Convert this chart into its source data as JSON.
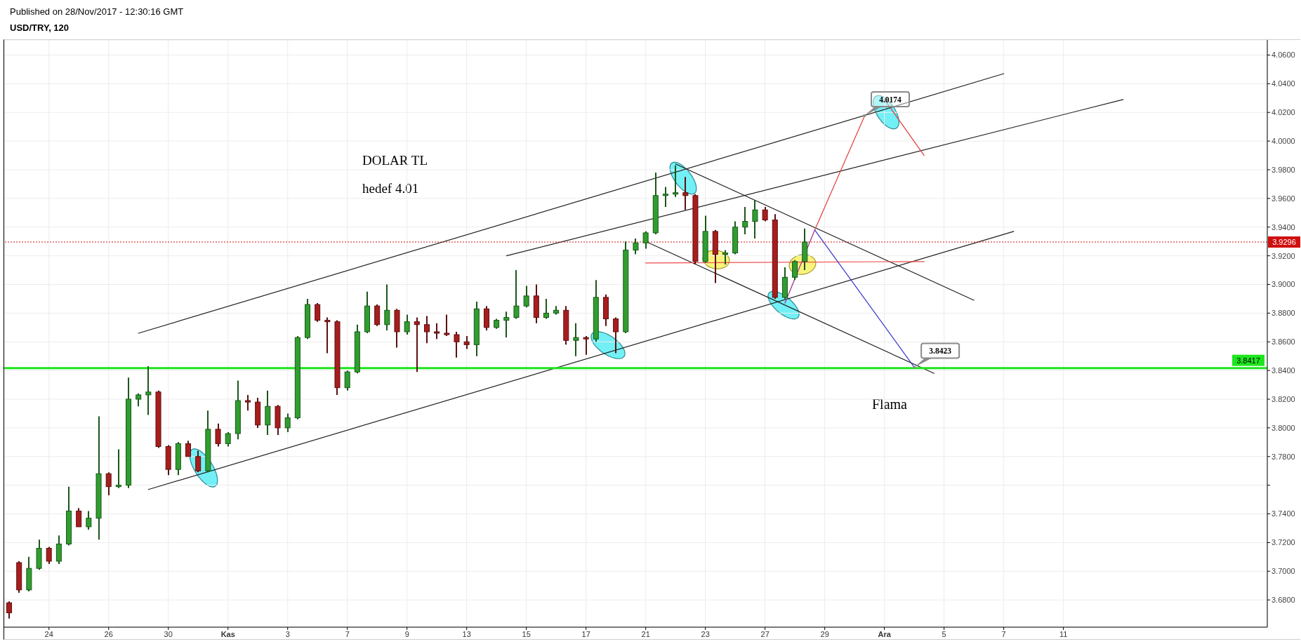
{
  "chart_data": {
    "type": "candlestick",
    "title": "USD/TRY, 120",
    "annotations": [
      "Published on 28/Nov/2017 - 12:30:16 GMT",
      "DOLAR TL",
      "hedef 4.01",
      "Flama",
      "4.0174",
      {
        "text": "3.8423",
        "y": 3.8423
      }
    ],
    "categories": [
      null,
      null,
      null,
      null,
      "24",
      null,
      null,
      null,
      null,
      null,
      "26",
      null,
      null,
      null,
      null,
      null,
      "30",
      null,
      null,
      null,
      null,
      null,
      "Kas",
      null,
      null,
      null,
      null,
      null,
      "3",
      null,
      null,
      null,
      null,
      null,
      "7",
      null,
      null,
      null,
      null,
      null,
      "9",
      null,
      null,
      null,
      null,
      null,
      "13",
      null,
      null,
      null,
      null,
      null,
      "15",
      null,
      null,
      null,
      null,
      null,
      "17",
      null,
      null,
      null,
      null,
      null,
      "21",
      null,
      null,
      null,
      null,
      null,
      "23",
      null,
      null,
      null,
      null,
      null,
      "27",
      null,
      null,
      null,
      null,
      null,
      "29",
      null,
      null,
      null,
      null,
      null,
      "Ara",
      null,
      null,
      null,
      null,
      null,
      "5",
      null,
      null,
      null,
      null,
      null,
      "7",
      null,
      null,
      null,
      null,
      null,
      "11",
      null,
      null,
      null,
      null,
      null,
      null,
      null,
      null,
      null,
      null,
      null,
      null,
      null,
      null,
      null,
      null,
      null,
      null,
      null,
      null
    ],
    "ohlc": [
      [
        3.678,
        3.679,
        3.667,
        3.671
      ],
      [
        3.706,
        3.707,
        3.685,
        3.687
      ],
      [
        3.687,
        3.71,
        3.686,
        3.702
      ],
      [
        3.702,
        3.722,
        3.701,
        3.716
      ],
      [
        3.716,
        3.717,
        3.705,
        3.707
      ],
      [
        3.707,
        3.725,
        3.705,
        3.719
      ],
      [
        3.719,
        3.759,
        3.718,
        3.742
      ],
      [
        3.742,
        3.744,
        3.731,
        3.731
      ],
      [
        3.731,
        3.742,
        3.729,
        3.737
      ],
      [
        3.737,
        3.808,
        3.722,
        3.768
      ],
      [
        3.768,
        3.769,
        3.753,
        3.759
      ],
      [
        3.759,
        3.785,
        3.758,
        3.76
      ],
      [
        3.76,
        3.835,
        3.758,
        3.82
      ],
      [
        3.82,
        3.824,
        3.815,
        3.823
      ],
      [
        3.823,
        3.843,
        3.809,
        3.825
      ],
      [
        3.825,
        3.826,
        3.786,
        3.787
      ],
      [
        3.787,
        3.788,
        3.767,
        3.771
      ],
      [
        3.771,
        3.79,
        3.767,
        3.789
      ],
      [
        3.789,
        3.791,
        3.78,
        3.78
      ],
      [
        3.78,
        3.784,
        3.769,
        3.77
      ],
      [
        3.77,
        3.812,
        3.769,
        3.799
      ],
      [
        3.799,
        3.803,
        3.787,
        3.789
      ],
      [
        3.789,
        3.797,
        3.787,
        3.796
      ],
      [
        3.796,
        3.833,
        3.792,
        3.819
      ],
      [
        3.819,
        3.823,
        3.812,
        3.818
      ],
      [
        3.818,
        3.821,
        3.8,
        3.802
      ],
      [
        3.802,
        3.826,
        3.795,
        3.815
      ],
      [
        3.815,
        3.816,
        3.795,
        3.8
      ],
      [
        3.8,
        3.81,
        3.797,
        3.807
      ],
      [
        3.807,
        3.864,
        3.806,
        3.863
      ],
      [
        3.863,
        3.89,
        3.862,
        3.886
      ],
      [
        3.886,
        3.887,
        3.874,
        3.875
      ],
      [
        3.875,
        3.877,
        3.852,
        3.874
      ],
      [
        3.874,
        3.875,
        3.823,
        3.828
      ],
      [
        3.828,
        3.84,
        3.826,
        3.839
      ],
      [
        3.839,
        3.872,
        3.838,
        3.867
      ],
      [
        3.867,
        3.895,
        3.866,
        3.885
      ],
      [
        3.885,
        3.886,
        3.871,
        3.872
      ],
      [
        3.872,
        3.9,
        3.868,
        3.882
      ],
      [
        3.882,
        3.883,
        3.856,
        3.867
      ],
      [
        3.867,
        3.879,
        3.865,
        3.874
      ],
      [
        3.874,
        3.877,
        3.839,
        3.872
      ],
      [
        3.872,
        3.878,
        3.859,
        3.867
      ],
      [
        3.867,
        3.873,
        3.862,
        3.866
      ],
      [
        3.866,
        3.879,
        3.864,
        3.865
      ],
      [
        3.865,
        3.867,
        3.849,
        3.86
      ],
      [
        3.86,
        3.864,
        3.855,
        3.858
      ],
      [
        3.858,
        3.888,
        3.85,
        3.883
      ],
      [
        3.883,
        3.885,
        3.868,
        3.87
      ],
      [
        3.87,
        3.876,
        3.869,
        3.875
      ],
      [
        3.875,
        3.881,
        3.863,
        3.877
      ],
      [
        3.877,
        3.91,
        3.876,
        3.885
      ],
      [
        3.885,
        3.899,
        3.884,
        3.892
      ],
      [
        3.892,
        3.9,
        3.873,
        3.877
      ],
      [
        3.877,
        3.89,
        3.876,
        3.88
      ],
      [
        3.88,
        3.885,
        3.879,
        3.882
      ],
      [
        3.882,
        3.885,
        3.858,
        3.861
      ],
      [
        3.861,
        3.873,
        3.85,
        3.863
      ],
      [
        3.863,
        3.864,
        3.851,
        3.862
      ],
      [
        3.862,
        3.903,
        3.86,
        3.891
      ],
      [
        3.891,
        3.893,
        3.871,
        3.876
      ],
      [
        3.876,
        3.877,
        3.852,
        3.867
      ],
      [
        3.867,
        3.93,
        3.866,
        3.924
      ],
      [
        3.924,
        3.932,
        3.921,
        3.929
      ],
      [
        3.929,
        3.937,
        3.925,
        3.936
      ],
      [
        3.936,
        3.978,
        3.935,
        3.962
      ],
      [
        3.962,
        3.968,
        3.954,
        3.963
      ],
      [
        3.963,
        3.983,
        3.961,
        3.964
      ],
      [
        3.964,
        3.975,
        3.952,
        3.962
      ],
      [
        3.962,
        3.963,
        3.914,
        3.916
      ],
      [
        3.916,
        3.948,
        3.915,
        3.937
      ],
      [
        3.937,
        3.938,
        3.901,
        3.921
      ],
      [
        3.921,
        3.924,
        3.914,
        3.922
      ],
      [
        3.922,
        3.944,
        3.921,
        3.94
      ],
      [
        3.94,
        3.954,
        3.935,
        3.944
      ],
      [
        3.944,
        3.959,
        3.932,
        3.952
      ],
      [
        3.952,
        3.954,
        3.944,
        3.945
      ],
      [
        3.945,
        3.949,
        3.89,
        3.891
      ],
      [
        3.891,
        3.912,
        3.89,
        3.905
      ],
      [
        3.905,
        3.917,
        3.903,
        3.916
      ],
      [
        3.916,
        3.939,
        3.91,
        3.9296
      ],
      null,
      null,
      null,
      null,
      null,
      null,
      null,
      null,
      null,
      null,
      null,
      null,
      null,
      null,
      null,
      null,
      null,
      null,
      null,
      null,
      null,
      null,
      null,
      null,
      null,
      null,
      null,
      null,
      null,
      null,
      null,
      null,
      null,
      null,
      null,
      null,
      null,
      null,
      null,
      null,
      null,
      null,
      null,
      null,
      null,
      null
    ],
    "colors": [
      "#a81d1d",
      "#a81d1d",
      "#2f9e2f",
      "#2f9e2f",
      "#a81d1d",
      "#2f9e2f",
      "#2f9e2f",
      "#a81d1d",
      "#2f9e2f",
      "#2f9e2f",
      "#a81d1d",
      "#2f9e2f",
      "#2f9e2f",
      "#2f9e2f",
      "#2f9e2f",
      "#a81d1d",
      "#a81d1d",
      "#2f9e2f",
      "#a81d1d",
      "#a81d1d",
      "#2f9e2f",
      "#a81d1d",
      "#2f9e2f",
      "#2f9e2f",
      "#a81d1d",
      "#a81d1d",
      "#2f9e2f",
      "#a81d1d",
      "#2f9e2f",
      "#2f9e2f",
      "#2f9e2f",
      "#a81d1d",
      "#a81d1d",
      "#a81d1d",
      "#2f9e2f",
      "#2f9e2f",
      "#2f9e2f",
      "#a81d1d",
      "#2f9e2f",
      "#a81d1d",
      "#2f9e2f",
      "#a81d1d",
      "#a81d1d",
      "#a81d1d",
      "#a81d1d",
      "#a81d1d",
      "#a81d1d",
      "#2f9e2f",
      "#a81d1d",
      "#2f9e2f",
      "#2f9e2f",
      "#2f9e2f",
      "#2f9e2f",
      "#a81d1d",
      "#2f9e2f",
      "#2f9e2f",
      "#a81d1d",
      "#2f9e2f",
      "#a81d1d",
      "#2f9e2f",
      "#a81d1d",
      "#a81d1d",
      "#2f9e2f",
      "#2f9e2f",
      "#2f9e2f",
      "#2f9e2f",
      "#2f9e2f",
      "#2f9e2f",
      "#a81d1d",
      "#a81d1d",
      "#2f9e2f",
      "#a81d1d",
      "#2f9e2f",
      "#2f9e2f",
      "#2f9e2f",
      "#2f9e2f",
      "#a81d1d",
      "#a81d1d",
      "#2f9e2f",
      "#2f9e2f",
      "#2f9e2f",
      null,
      null,
      null,
      null,
      null,
      null,
      null,
      null,
      null,
      null,
      null,
      null,
      null,
      null,
      null,
      null,
      null,
      null,
      null,
      null,
      null,
      null,
      null,
      null,
      null,
      null,
      null,
      null,
      null,
      null,
      null,
      null,
      null,
      null,
      null,
      null,
      null,
      null,
      null,
      null,
      null,
      null,
      null,
      null,
      null,
      null
    ],
    "series": [
      {
        "type": "line",
        "color": "#1f1f1f",
        "values": [
          null,
          null,
          null,
          null,
          null,
          null,
          null,
          null,
          null,
          null,
          null,
          null,
          null,
          3.866,
          null,
          null,
          null,
          null,
          null,
          null,
          null,
          null,
          null,
          null,
          null,
          null,
          null,
          null,
          null,
          null,
          null,
          null,
          null,
          null,
          null,
          null,
          null,
          null,
          null,
          null,
          null,
          null,
          null,
          null,
          null,
          null,
          null,
          null,
          null,
          null,
          null,
          null,
          null,
          null,
          null,
          null,
          null,
          null,
          null,
          null,
          null,
          null,
          null,
          null,
          null,
          null,
          null,
          null,
          null,
          null,
          null,
          null,
          null,
          null,
          null,
          null,
          null,
          null,
          null,
          null,
          null,
          null,
          null,
          null,
          null,
          null,
          null,
          null,
          null,
          null,
          null,
          null,
          null,
          null,
          null,
          null,
          null,
          null,
          null,
          null,
          4.047,
          null,
          null,
          null,
          null,
          null,
          null,
          null,
          null,
          null,
          null,
          null,
          null,
          null,
          null,
          null,
          null,
          null,
          null,
          null,
          null,
          null,
          null,
          null,
          null,
          null,
          null
        ]
      },
      {
        "type": "line",
        "color": "#1f1f1f",
        "values": [
          null,
          null,
          null,
          null,
          null,
          null,
          null,
          null,
          null,
          null,
          null,
          null,
          null,
          null,
          null,
          null,
          null,
          null,
          null,
          null,
          null,
          null,
          null,
          null,
          null,
          null,
          null,
          null,
          null,
          null,
          null,
          null,
          null,
          null,
          null,
          null,
          null,
          null,
          null,
          null,
          null,
          null,
          null,
          null,
          null,
          null,
          null,
          null,
          null,
          null,
          3.92,
          null,
          null,
          null,
          null,
          null,
          null,
          null,
          null,
          null,
          null,
          null,
          null,
          null,
          null,
          null,
          null,
          null,
          null,
          null,
          null,
          null,
          null,
          null,
          null,
          null,
          null,
          null,
          null,
          null,
          null,
          null,
          null,
          null,
          null,
          null,
          null,
          null,
          null,
          null,
          null,
          null,
          null,
          null,
          null,
          null,
          null,
          null,
          null,
          null,
          null,
          null,
          null,
          null,
          null,
          null,
          null,
          null,
          null,
          null,
          null,
          null,
          4.029,
          null,
          null,
          null,
          null,
          null,
          null,
          null,
          null,
          null,
          null,
          null,
          null,
          null,
          null
        ]
      },
      {
        "type": "line",
        "color": "#1f1f1f",
        "values": [
          null,
          null,
          null,
          null,
          null,
          null,
          null,
          null,
          null,
          null,
          null,
          null,
          null,
          null,
          3.757,
          null,
          null,
          null,
          null,
          null,
          null,
          null,
          null,
          null,
          null,
          null,
          null,
          null,
          null,
          null,
          null,
          null,
          null,
          null,
          null,
          null,
          null,
          null,
          null,
          null,
          null,
          null,
          null,
          null,
          null,
          null,
          null,
          null,
          null,
          null,
          null,
          null,
          null,
          null,
          null,
          null,
          null,
          null,
          null,
          null,
          null,
          null,
          null,
          null,
          null,
          null,
          null,
          null,
          null,
          null,
          null,
          null,
          null,
          null,
          null,
          null,
          null,
          null,
          null,
          null,
          null,
          null,
          null,
          null,
          null,
          null,
          null,
          null,
          null,
          null,
          null,
          null,
          null,
          null,
          null,
          null,
          null,
          null,
          null,
          null,
          null,
          3.937,
          null,
          null,
          null,
          null,
          null,
          null,
          null,
          null,
          null,
          null,
          null,
          null,
          null,
          null,
          null,
          null,
          null,
          null,
          null,
          null,
          null,
          null,
          null,
          null,
          null
        ]
      },
      {
        "type": "line",
        "color": "#1f1f1f",
        "values": [
          null,
          null,
          null,
          null,
          null,
          null,
          null,
          null,
          null,
          null,
          null,
          null,
          null,
          null,
          null,
          null,
          null,
          null,
          null,
          null,
          null,
          null,
          null,
          null,
          null,
          null,
          null,
          null,
          null,
          null,
          null,
          null,
          null,
          null,
          null,
          null,
          null,
          null,
          null,
          null,
          null,
          null,
          null,
          null,
          null,
          null,
          null,
          null,
          null,
          null,
          null,
          null,
          null,
          null,
          null,
          null,
          null,
          null,
          null,
          null,
          null,
          null,
          null,
          null,
          null,
          null,
          null,
          3.984,
          null,
          null,
          null,
          null,
          null,
          null,
          null,
          null,
          null,
          null,
          null,
          null,
          null,
          null,
          null,
          null,
          null,
          null,
          null,
          null,
          null,
          null,
          null,
          null,
          null,
          null,
          null,
          null,
          null,
          3.889,
          null,
          null,
          null,
          null,
          null,
          null,
          null,
          null,
          null,
          null,
          null,
          null,
          null,
          null,
          null,
          null,
          null,
          null,
          null,
          null,
          null,
          null,
          null,
          null,
          null,
          null,
          null,
          null,
          null
        ]
      },
      {
        "type": "line",
        "color": "#1f1f1f",
        "values": [
          null,
          null,
          null,
          null,
          null,
          null,
          null,
          null,
          null,
          null,
          null,
          null,
          null,
          null,
          null,
          null,
          null,
          null,
          null,
          null,
          null,
          null,
          null,
          null,
          null,
          null,
          null,
          null,
          null,
          null,
          null,
          null,
          null,
          null,
          null,
          null,
          null,
          null,
          null,
          null,
          null,
          null,
          null,
          null,
          null,
          null,
          null,
          null,
          null,
          null,
          null,
          null,
          null,
          null,
          null,
          null,
          null,
          null,
          null,
          null,
          null,
          null,
          null,
          null,
          3.93,
          null,
          null,
          null,
          null,
          null,
          null,
          null,
          null,
          null,
          null,
          null,
          null,
          null,
          null,
          null,
          null,
          null,
          null,
          null,
          null,
          null,
          null,
          null,
          null,
          null,
          null,
          null,
          null,
          3.838,
          null,
          null,
          null,
          null,
          null,
          null,
          null,
          null,
          null,
          null,
          null,
          null,
          null,
          null,
          null,
          null,
          null,
          null,
          null,
          null,
          null,
          null,
          null,
          null,
          null,
          null,
          null,
          null,
          null,
          null,
          null,
          null,
          null
        ]
      },
      {
        "type": "line",
        "color": "#f04848",
        "values": [
          null,
          null,
          null,
          null,
          null,
          null,
          null,
          null,
          null,
          null,
          null,
          null,
          null,
          null,
          null,
          null,
          null,
          null,
          null,
          null,
          null,
          null,
          null,
          null,
          null,
          null,
          null,
          null,
          null,
          null,
          null,
          null,
          null,
          null,
          null,
          null,
          null,
          null,
          null,
          null,
          null,
          null,
          null,
          null,
          null,
          null,
          null,
          null,
          null,
          null,
          null,
          null,
          null,
          null,
          null,
          null,
          null,
          null,
          null,
          null,
          null,
          null,
          null,
          null,
          3.915,
          null,
          null,
          null,
          null,
          null,
          null,
          null,
          null,
          null,
          null,
          null,
          null,
          null,
          null,
          null,
          null,
          null,
          null,
          null,
          null,
          null,
          null,
          null,
          null,
          null,
          null,
          null,
          3.916,
          null,
          null,
          null,
          null,
          null,
          null,
          null,
          null,
          null,
          null,
          null,
          null,
          null,
          null,
          null,
          null,
          null,
          null,
          null,
          null,
          null,
          null,
          null,
          null,
          null,
          null,
          null,
          null,
          null,
          null,
          null,
          null,
          null,
          null
        ]
      },
      {
        "type": "line",
        "color": "#a0288c",
        "values": [
          null,
          null,
          null,
          null,
          null,
          null,
          null,
          null,
          null,
          null,
          null,
          null,
          null,
          null,
          null,
          null,
          null,
          null,
          null,
          null,
          null,
          null,
          null,
          null,
          null,
          null,
          null,
          null,
          null,
          null,
          null,
          null,
          null,
          null,
          null,
          null,
          null,
          null,
          null,
          null,
          null,
          null,
          null,
          null,
          null,
          null,
          null,
          null,
          null,
          null,
          null,
          null,
          null,
          null,
          null,
          null,
          null,
          null,
          null,
          null,
          null,
          null,
          null,
          null,
          null,
          null,
          null,
          null,
          null,
          null,
          null,
          null,
          null,
          null,
          null,
          null,
          null,
          null,
          3.887,
          null,
          null,
          3.938,
          null,
          null,
          null,
          null,
          null,
          null,
          null,
          null,
          null,
          null,
          null,
          null,
          null,
          null,
          null,
          null,
          null,
          null,
          null,
          null,
          null,
          null,
          null,
          null,
          null,
          null,
          null,
          null,
          null,
          null,
          null,
          null,
          null,
          null,
          null,
          null,
          null,
          null,
          null,
          null,
          null,
          null,
          null,
          null,
          null
        ]
      },
      {
        "type": "line",
        "color": "#e03c3c",
        "values": [
          null,
          null,
          null,
          null,
          null,
          null,
          null,
          null,
          null,
          null,
          null,
          null,
          null,
          null,
          null,
          null,
          null,
          null,
          null,
          null,
          null,
          null,
          null,
          null,
          null,
          null,
          null,
          null,
          null,
          null,
          null,
          null,
          null,
          null,
          null,
          null,
          null,
          null,
          null,
          null,
          null,
          null,
          null,
          null,
          null,
          null,
          null,
          null,
          null,
          null,
          null,
          null,
          null,
          null,
          null,
          null,
          null,
          null,
          null,
          null,
          null,
          null,
          null,
          null,
          null,
          null,
          null,
          null,
          null,
          null,
          null,
          null,
          null,
          null,
          null,
          null,
          null,
          null,
          null,
          null,
          null,
          3.938,
          null,
          null,
          null,
          null,
          4.0174,
          null,
          null,
          null,
          null,
          null,
          null,
          null,
          null,
          null,
          null,
          null,
          null,
          null,
          null,
          null,
          null,
          null,
          null,
          null,
          null,
          null,
          null,
          null,
          null,
          null,
          null,
          null,
          null,
          null,
          null,
          null,
          null,
          null,
          null,
          null,
          null,
          null,
          null,
          null,
          null
        ]
      },
      {
        "type": "line",
        "color": "#e03c3c",
        "values": [
          null,
          null,
          null,
          null,
          null,
          null,
          null,
          null,
          null,
          null,
          null,
          null,
          null,
          null,
          null,
          null,
          null,
          null,
          null,
          null,
          null,
          null,
          null,
          null,
          null,
          null,
          null,
          null,
          null,
          null,
          null,
          null,
          null,
          null,
          null,
          null,
          null,
          null,
          null,
          null,
          null,
          null,
          null,
          null,
          null,
          null,
          null,
          null,
          null,
          null,
          null,
          null,
          null,
          null,
          null,
          null,
          null,
          null,
          null,
          null,
          null,
          null,
          null,
          null,
          null,
          null,
          null,
          null,
          null,
          null,
          null,
          null,
          null,
          null,
          null,
          null,
          null,
          null,
          null,
          null,
          null,
          null,
          null,
          null,
          null,
          null,
          null,
          null,
          4.029,
          null,
          null,
          null,
          3.99,
          null,
          null,
          null,
          null,
          null,
          null,
          null,
          null,
          null,
          null,
          null,
          null,
          null,
          null,
          null,
          null,
          null,
          null,
          null,
          null,
          null,
          null,
          null,
          null,
          null,
          null,
          null,
          null,
          null,
          null,
          null,
          null,
          null,
          null
        ]
      },
      {
        "type": "line",
        "color": "#3333cc",
        "values": [
          null,
          null,
          null,
          null,
          null,
          null,
          null,
          null,
          null,
          null,
          null,
          null,
          null,
          null,
          null,
          null,
          null,
          null,
          null,
          null,
          null,
          null,
          null,
          null,
          null,
          null,
          null,
          null,
          null,
          null,
          null,
          null,
          null,
          null,
          null,
          null,
          null,
          null,
          null,
          null,
          null,
          null,
          null,
          null,
          null,
          null,
          null,
          null,
          null,
          null,
          null,
          null,
          null,
          null,
          null,
          null,
          null,
          null,
          null,
          null,
          null,
          null,
          null,
          null,
          null,
          null,
          null,
          null,
          null,
          null,
          null,
          null,
          null,
          null,
          null,
          null,
          null,
          null,
          null,
          null,
          null,
          3.938,
          null,
          null,
          null,
          null,
          null,
          null,
          null,
          null,
          null,
          3.8423,
          null,
          null,
          null,
          null,
          null,
          null,
          null,
          null,
          null,
          null,
          null,
          null,
          null,
          null,
          null,
          null,
          null,
          null,
          null,
          null,
          null,
          null,
          null,
          null,
          null,
          null,
          null,
          null,
          null,
          null,
          null,
          null,
          null,
          null,
          null
        ]
      }
    ],
    "ylim": [
      3.661,
      4.0705
    ],
    "yticks": [
      {
        "value": 3.68,
        "label": "3.6800"
      },
      {
        "value": 3.7,
        "label": "3.7000"
      },
      {
        "value": 3.72,
        "label": "3.7200"
      },
      {
        "value": 3.74,
        "label": "3.7400"
      },
      {
        "value": 3.76,
        "label": null
      },
      {
        "value": 3.78,
        "label": "3.7800"
      },
      {
        "value": 3.8,
        "label": "3.8000"
      },
      {
        "value": 3.82,
        "label": "3.8200"
      },
      {
        "value": 3.84,
        "label": "3.8400"
      },
      {
        "value": 3.86,
        "label": "3.8600"
      },
      {
        "value": 3.88,
        "label": "3.8800"
      },
      {
        "value": 3.9,
        "label": "3.9000"
      },
      {
        "value": 3.92,
        "label": "3.9200"
      },
      {
        "value": 3.94,
        "label": "3.9400"
      },
      {
        "value": 3.96,
        "label": "3.9600"
      },
      {
        "value": 3.98,
        "label": "3.9800"
      },
      {
        "value": 4,
        "label": "4.0000"
      },
      {
        "value": 4.02,
        "label": "4.0200"
      },
      {
        "value": 4.04,
        "label": "4.0400"
      },
      {
        "value": 4.06,
        "label": "4.0600"
      }
    ],
    "grid": true,
    "marker": "none",
    "ref_lines": [
      {
        "axis": "y",
        "value": 3.9296,
        "label": "3.9296",
        "color": "#d01010",
        "line_style": "dotted"
      },
      {
        "axis": "y",
        "value": 3.8417,
        "label": "3.8417",
        "color": "#1ee61e"
      }
    ]
  }
}
